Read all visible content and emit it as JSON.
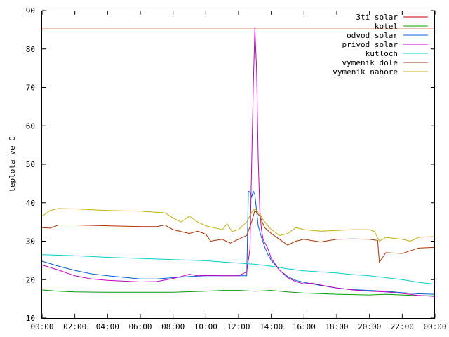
{
  "chart_data": {
    "type": "line",
    "title": "",
    "xlabel": "",
    "ylabel": "teplota ve C",
    "ylim": [
      10,
      90
    ],
    "xlim": [
      0,
      24
    ],
    "x_ticks": [
      "00:00",
      "02:00",
      "04:00",
      "06:00",
      "08:00",
      "10:00",
      "12:00",
      "14:00",
      "16:00",
      "18:00",
      "20:00",
      "22:00",
      "00:00"
    ],
    "y_ticks": [
      "10",
      "20",
      "30",
      "40",
      "50",
      "60",
      "70",
      "80",
      "90"
    ],
    "grid": false,
    "legend_position": "top-right",
    "series": [
      {
        "name": "3ti solar",
        "color": "#c00000",
        "x": [
          0,
          24
        ],
        "y": [
          85.2,
          85.2
        ]
      },
      {
        "name": "kotel",
        "color": "#00a000",
        "x": [
          0,
          1,
          2,
          4,
          6,
          8,
          10,
          11,
          12,
          13,
          14,
          15,
          16,
          18,
          20,
          21,
          22,
          23,
          24
        ],
        "y": [
          17.3,
          17.0,
          16.8,
          16.7,
          16.7,
          16.7,
          17.0,
          17.2,
          17.2,
          17.0,
          17.2,
          16.8,
          16.5,
          16.2,
          16.0,
          16.2,
          16.0,
          15.8,
          15.8
        ]
      },
      {
        "name": "odvod solar",
        "color": "#0060d0",
        "x": [
          0,
          1,
          2,
          3,
          4,
          5,
          6,
          7,
          8,
          9,
          10,
          11,
          12,
          12.5,
          12.6,
          12.7,
          12.8,
          12.9,
          13.0,
          13.1,
          13.2,
          13.4,
          13.6,
          13.8,
          14,
          14.5,
          15,
          15.5,
          16,
          17,
          18,
          19,
          20,
          21,
          22,
          23,
          24
        ],
        "y": [
          24.8,
          23.5,
          22.4,
          21.5,
          21.0,
          20.6,
          20.2,
          20.2,
          20.5,
          20.8,
          21.0,
          21.0,
          21.0,
          21.0,
          43.0,
          42.8,
          41.5,
          43.0,
          42.0,
          38.0,
          34.0,
          31.0,
          28.5,
          26.5,
          25.0,
          22.5,
          20.8,
          19.8,
          19.3,
          18.5,
          17.8,
          17.4,
          17.2,
          17.0,
          16.6,
          16.3,
          16.2
        ]
      },
      {
        "name": "privod solar",
        "color": "#c000c0",
        "x": [
          0,
          1,
          2,
          3,
          4,
          5,
          6,
          7,
          8,
          8.5,
          9,
          9.5,
          10,
          11,
          12,
          12.5,
          12.7,
          12.8,
          12.9,
          13.0,
          13.05,
          13.1,
          13.2,
          13.3,
          13.4,
          13.5,
          13.8,
          14,
          14.5,
          15,
          15.5,
          16,
          16.5,
          17,
          18,
          19,
          20,
          21,
          22,
          23,
          24
        ],
        "y": [
          23.8,
          22.5,
          21.0,
          20.2,
          19.8,
          19.6,
          19.4,
          19.5,
          20.3,
          20.8,
          21.4,
          21.0,
          21.1,
          21.0,
          21.0,
          22.0,
          28.0,
          50.0,
          70.0,
          85.5,
          80.0,
          75.0,
          52.0,
          38.0,
          33.0,
          30.5,
          28.0,
          25.5,
          22.5,
          20.5,
          19.5,
          18.9,
          19.1,
          18.6,
          17.8,
          17.3,
          17.0,
          16.8,
          16.4,
          15.9,
          15.6
        ]
      },
      {
        "name": "kutloch",
        "color": "#00d0d0",
        "x": [
          0,
          2,
          4,
          6,
          8,
          10,
          11,
          12,
          13,
          14,
          15,
          16,
          17,
          18,
          19,
          20,
          21,
          22,
          23,
          24
        ],
        "y": [
          26.5,
          26.2,
          25.8,
          25.5,
          25.2,
          24.9,
          24.6,
          24.3,
          24.0,
          23.5,
          22.8,
          22.3,
          22.0,
          21.7,
          21.3,
          21.0,
          20.5,
          20.0,
          19.3,
          18.8
        ]
      },
      {
        "name": "vymenik dole",
        "color": "#b03000",
        "x": [
          0,
          0.5,
          1,
          2,
          4,
          6,
          7,
          7.5,
          8,
          9,
          9.5,
          10,
          10.3,
          11,
          11.5,
          12,
          12.5,
          12.8,
          13,
          13.3,
          13.6,
          14,
          14.5,
          15,
          15.5,
          16,
          17,
          18,
          19,
          20,
          20.5,
          20.6,
          21,
          22,
          22.5,
          23,
          24
        ],
        "y": [
          33.5,
          33.4,
          34.2,
          34.2,
          34.0,
          33.8,
          33.8,
          34.2,
          33.0,
          32.0,
          32.6,
          31.8,
          30.0,
          30.5,
          29.5,
          30.5,
          31.5,
          35.0,
          38.0,
          36.5,
          33.5,
          32.0,
          30.5,
          29.0,
          30.0,
          30.5,
          29.8,
          30.5,
          30.6,
          30.5,
          30.2,
          24.5,
          27.0,
          26.8,
          27.5,
          28.2,
          28.4
        ]
      },
      {
        "name": "vymenik nahore",
        "color": "#c0b000",
        "x": [
          0,
          0.5,
          1,
          2,
          4,
          6,
          7,
          7.5,
          8,
          8.5,
          9,
          9.5,
          10,
          10.5,
          11,
          11.3,
          11.6,
          12,
          12.5,
          12.8,
          13,
          13.3,
          13.6,
          14,
          14.5,
          15,
          15.5,
          16,
          17,
          18,
          19,
          20,
          20.3,
          20.6,
          21,
          22,
          22.5,
          23,
          24
        ],
        "y": [
          36.5,
          38.0,
          38.5,
          38.4,
          38.0,
          37.8,
          37.5,
          37.4,
          36.0,
          35.0,
          36.5,
          35.0,
          34.0,
          33.5,
          33.0,
          34.5,
          32.5,
          33.0,
          35.0,
          37.5,
          38.5,
          37.0,
          35.0,
          33.0,
          31.5,
          32.0,
          33.5,
          33.0,
          32.6,
          32.8,
          33.0,
          33.0,
          32.5,
          30.0,
          31.0,
          30.5,
          30.0,
          31.0,
          31.2
        ]
      }
    ]
  }
}
